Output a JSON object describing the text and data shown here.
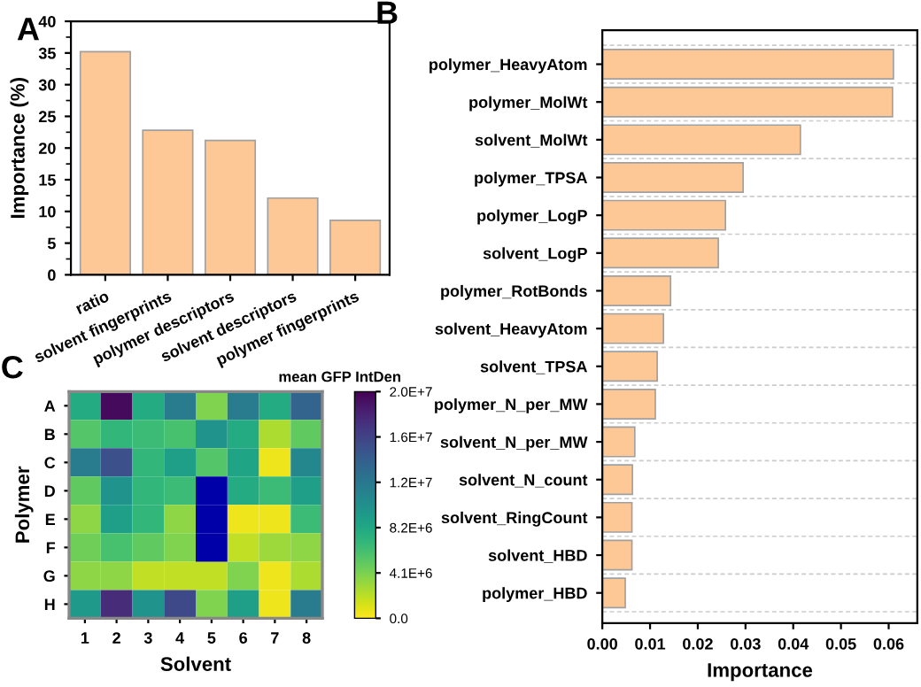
{
  "chart_data": [
    {
      "type": "bar",
      "annotations": [
        "A"
      ],
      "ylabel": "Importance (%)",
      "categories": [
        "ratio",
        "solvent fingerprints",
        "polymer descriptors",
        "solvent descriptors",
        "polymer fingerprints"
      ],
      "values": [
        35.2,
        22.8,
        21.2,
        12.1,
        8.6
      ],
      "color": "#fdc896",
      "ylim": [
        0,
        40
      ],
      "yticks": [
        0,
        5,
        10,
        15,
        20,
        25,
        30,
        35,
        40
      ],
      "grid": false
    },
    {
      "type": "bar",
      "orientation": "horizontal",
      "annotations": [
        "B"
      ],
      "xlabel": "Importance",
      "categories": [
        "polymer_HeavyAtom",
        "polymer_MolWt",
        "solvent_MolWt",
        "polymer_TPSA",
        "polymer_LogP",
        "solvent_LogP",
        "polymer_RotBonds",
        "solvent_HeavyAtom",
        "solvent_TPSA",
        "polymer_N_per_MW",
        "solvent_N_per_MW",
        "solvent_N_count",
        "solvent_RingCount",
        "solvent_HBD",
        "polymer_HBD"
      ],
      "values": [
        0.061,
        0.0608,
        0.0415,
        0.0295,
        0.0258,
        0.0243,
        0.0143,
        0.0128,
        0.0115,
        0.0111,
        0.0068,
        0.0063,
        0.0062,
        0.0062,
        0.0048
      ],
      "color": "#fdc896",
      "xlim": [
        0,
        0.066
      ],
      "xticks": [
        {
          "value": 0,
          "label": "0.00"
        },
        {
          "value": 0.01,
          "label": "0.01"
        },
        {
          "value": 0.02,
          "label": "0.02"
        },
        {
          "value": 0.03,
          "label": "0.03"
        },
        {
          "value": 0.04,
          "label": "0.04"
        },
        {
          "value": 0.05,
          "label": "0.05"
        },
        {
          "value": 0.06,
          "label": "0.06"
        }
      ],
      "grid": "y"
    },
    {
      "type": "heatmap",
      "annotations": [
        "C"
      ],
      "xlabel": "Solvent",
      "ylabel": "Polymer",
      "clabel": "mean GFP IntDen",
      "categories": [
        "1",
        "2",
        "3",
        "4",
        "5",
        "6",
        "7",
        "8"
      ],
      "y_categories": [
        "A",
        "B",
        "C",
        "D",
        "E",
        "F",
        "G",
        "H"
      ],
      "cells": [
        [
          8000000,
          20000000,
          8000000,
          12000000,
          4000000,
          12000000,
          8000000,
          14000000
        ],
        [
          5500000,
          7000000,
          6500000,
          6000000,
          10000000,
          8000000,
          2500000,
          5000000
        ],
        [
          12000000,
          15500000,
          7000000,
          9000000,
          5500000,
          8500000,
          500000,
          11000000
        ],
        [
          5000000,
          10000000,
          7000000,
          6500000,
          null,
          8000000,
          6500000,
          9000000
        ],
        [
          3500000,
          9000000,
          7000000,
          3500000,
          null,
          500000,
          500000,
          6500000
        ],
        [
          4500000,
          6000000,
          5000000,
          4000000,
          null,
          2000000,
          3000000,
          3500000
        ],
        [
          3500000,
          3500000,
          2000000,
          2000000,
          2000000,
          4000000,
          500000,
          2500000
        ],
        [
          9500000,
          18000000,
          10000000,
          16000000,
          4000000,
          9000000,
          500000,
          12000000
        ]
      ],
      "clim": [
        0,
        20500000
      ],
      "cticks": [
        {
          "value": 0,
          "label": "0.0"
        },
        {
          "value": 4100000,
          "label": "4.1E+6"
        },
        {
          "value": 8200000,
          "label": "8.2E+6"
        },
        {
          "value": 12300000,
          "label": "1.2E+7"
        },
        {
          "value": 16400000,
          "label": "1.6E+7"
        },
        {
          "value": 20500000,
          "label": "2.0E+7"
        }
      ]
    }
  ]
}
